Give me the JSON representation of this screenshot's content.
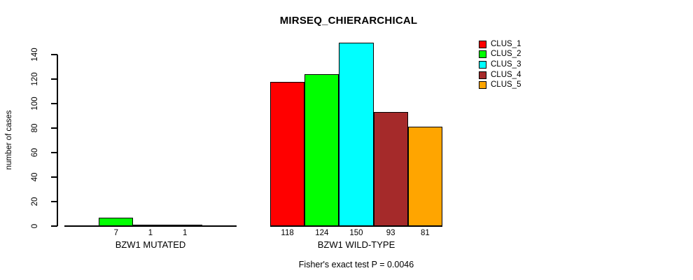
{
  "title": "MIRSEQ_CHIERARCHICAL",
  "y_axis": {
    "label": "number of cases"
  },
  "annotation": "Fisher's exact test P = 0.0046",
  "legend": {
    "entries": [
      {
        "label": "CLUS_1",
        "color": "#FF0000"
      },
      {
        "label": "CLUS_2",
        "color": "#00FF00"
      },
      {
        "label": "CLUS_3",
        "color": "#00FFFF"
      },
      {
        "label": "CLUS_4",
        "color": "#A52A2A"
      },
      {
        "label": "CLUS_5",
        "color": "#FFA500"
      }
    ]
  },
  "chart_data": {
    "type": "bar",
    "title": "MIRSEQ_CHIERARCHICAL",
    "ylabel": "number of cases",
    "xlabel": "",
    "ylim": [
      0,
      150
    ],
    "yticks": [
      0,
      20,
      40,
      60,
      80,
      100,
      120,
      140
    ],
    "grid": false,
    "legend_position": "top-right",
    "series_names": [
      "CLUS_1",
      "CLUS_2",
      "CLUS_3",
      "CLUS_4",
      "CLUS_5"
    ],
    "series_colors": [
      "#FF0000",
      "#00FF00",
      "#00FFFF",
      "#A52A2A",
      "#FFA500"
    ],
    "groups": [
      {
        "label": "BZW1 MUTATED",
        "values": [
          0,
          7,
          1,
          1,
          0
        ],
        "bar_labels": [
          "",
          "7",
          "1",
          "1",
          ""
        ]
      },
      {
        "label": "BZW1 WILD-TYPE",
        "values": [
          118,
          124,
          150,
          93,
          81
        ],
        "bar_labels": [
          "118",
          "124",
          "150",
          "93",
          "81"
        ]
      }
    ],
    "annotation": "Fisher's exact test P = 0.0046"
  }
}
